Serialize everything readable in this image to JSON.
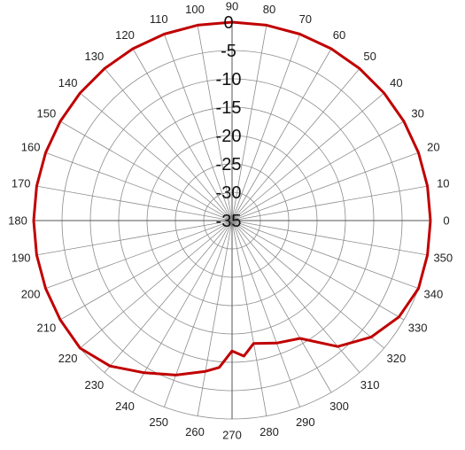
{
  "chart_data": {
    "type": "line",
    "subtype": "polar",
    "title": "",
    "angle_unit": "degrees",
    "angle_ticks": [
      0,
      10,
      20,
      30,
      40,
      50,
      60,
      70,
      80,
      90,
      100,
      110,
      120,
      130,
      140,
      150,
      160,
      170,
      180,
      190,
      200,
      210,
      220,
      230,
      240,
      250,
      260,
      270,
      280,
      290,
      300,
      310,
      320,
      330,
      340,
      350
    ],
    "radial_ticks": [
      0,
      -5,
      -10,
      -15,
      -20,
      -25,
      -30,
      -35
    ],
    "rlim": [
      -35,
      0
    ],
    "grid": true,
    "series_color": "#c00000",
    "series": [
      {
        "angles": [
          0,
          10,
          20,
          30,
          40,
          50,
          60,
          70,
          80,
          90,
          100,
          110,
          120,
          130,
          140,
          150,
          160,
          170,
          180,
          190,
          200,
          210,
          220,
          230,
          240,
          250,
          260,
          265,
          270,
          275,
          280,
          290,
          300,
          310,
          320,
          330,
          340,
          350,
          360
        ],
        "values": [
          0,
          0,
          0,
          0,
          0,
          0,
          0,
          0,
          0,
          0,
          0,
          0,
          0,
          0,
          0,
          0,
          0,
          0,
          0,
          0,
          0,
          0,
          0,
          -1.5,
          -4,
          -6,
          -8,
          -9,
          -12,
          -11,
          -13,
          -12,
          -11,
          -6,
          -3,
          -1,
          0,
          0,
          0
        ]
      }
    ]
  }
}
